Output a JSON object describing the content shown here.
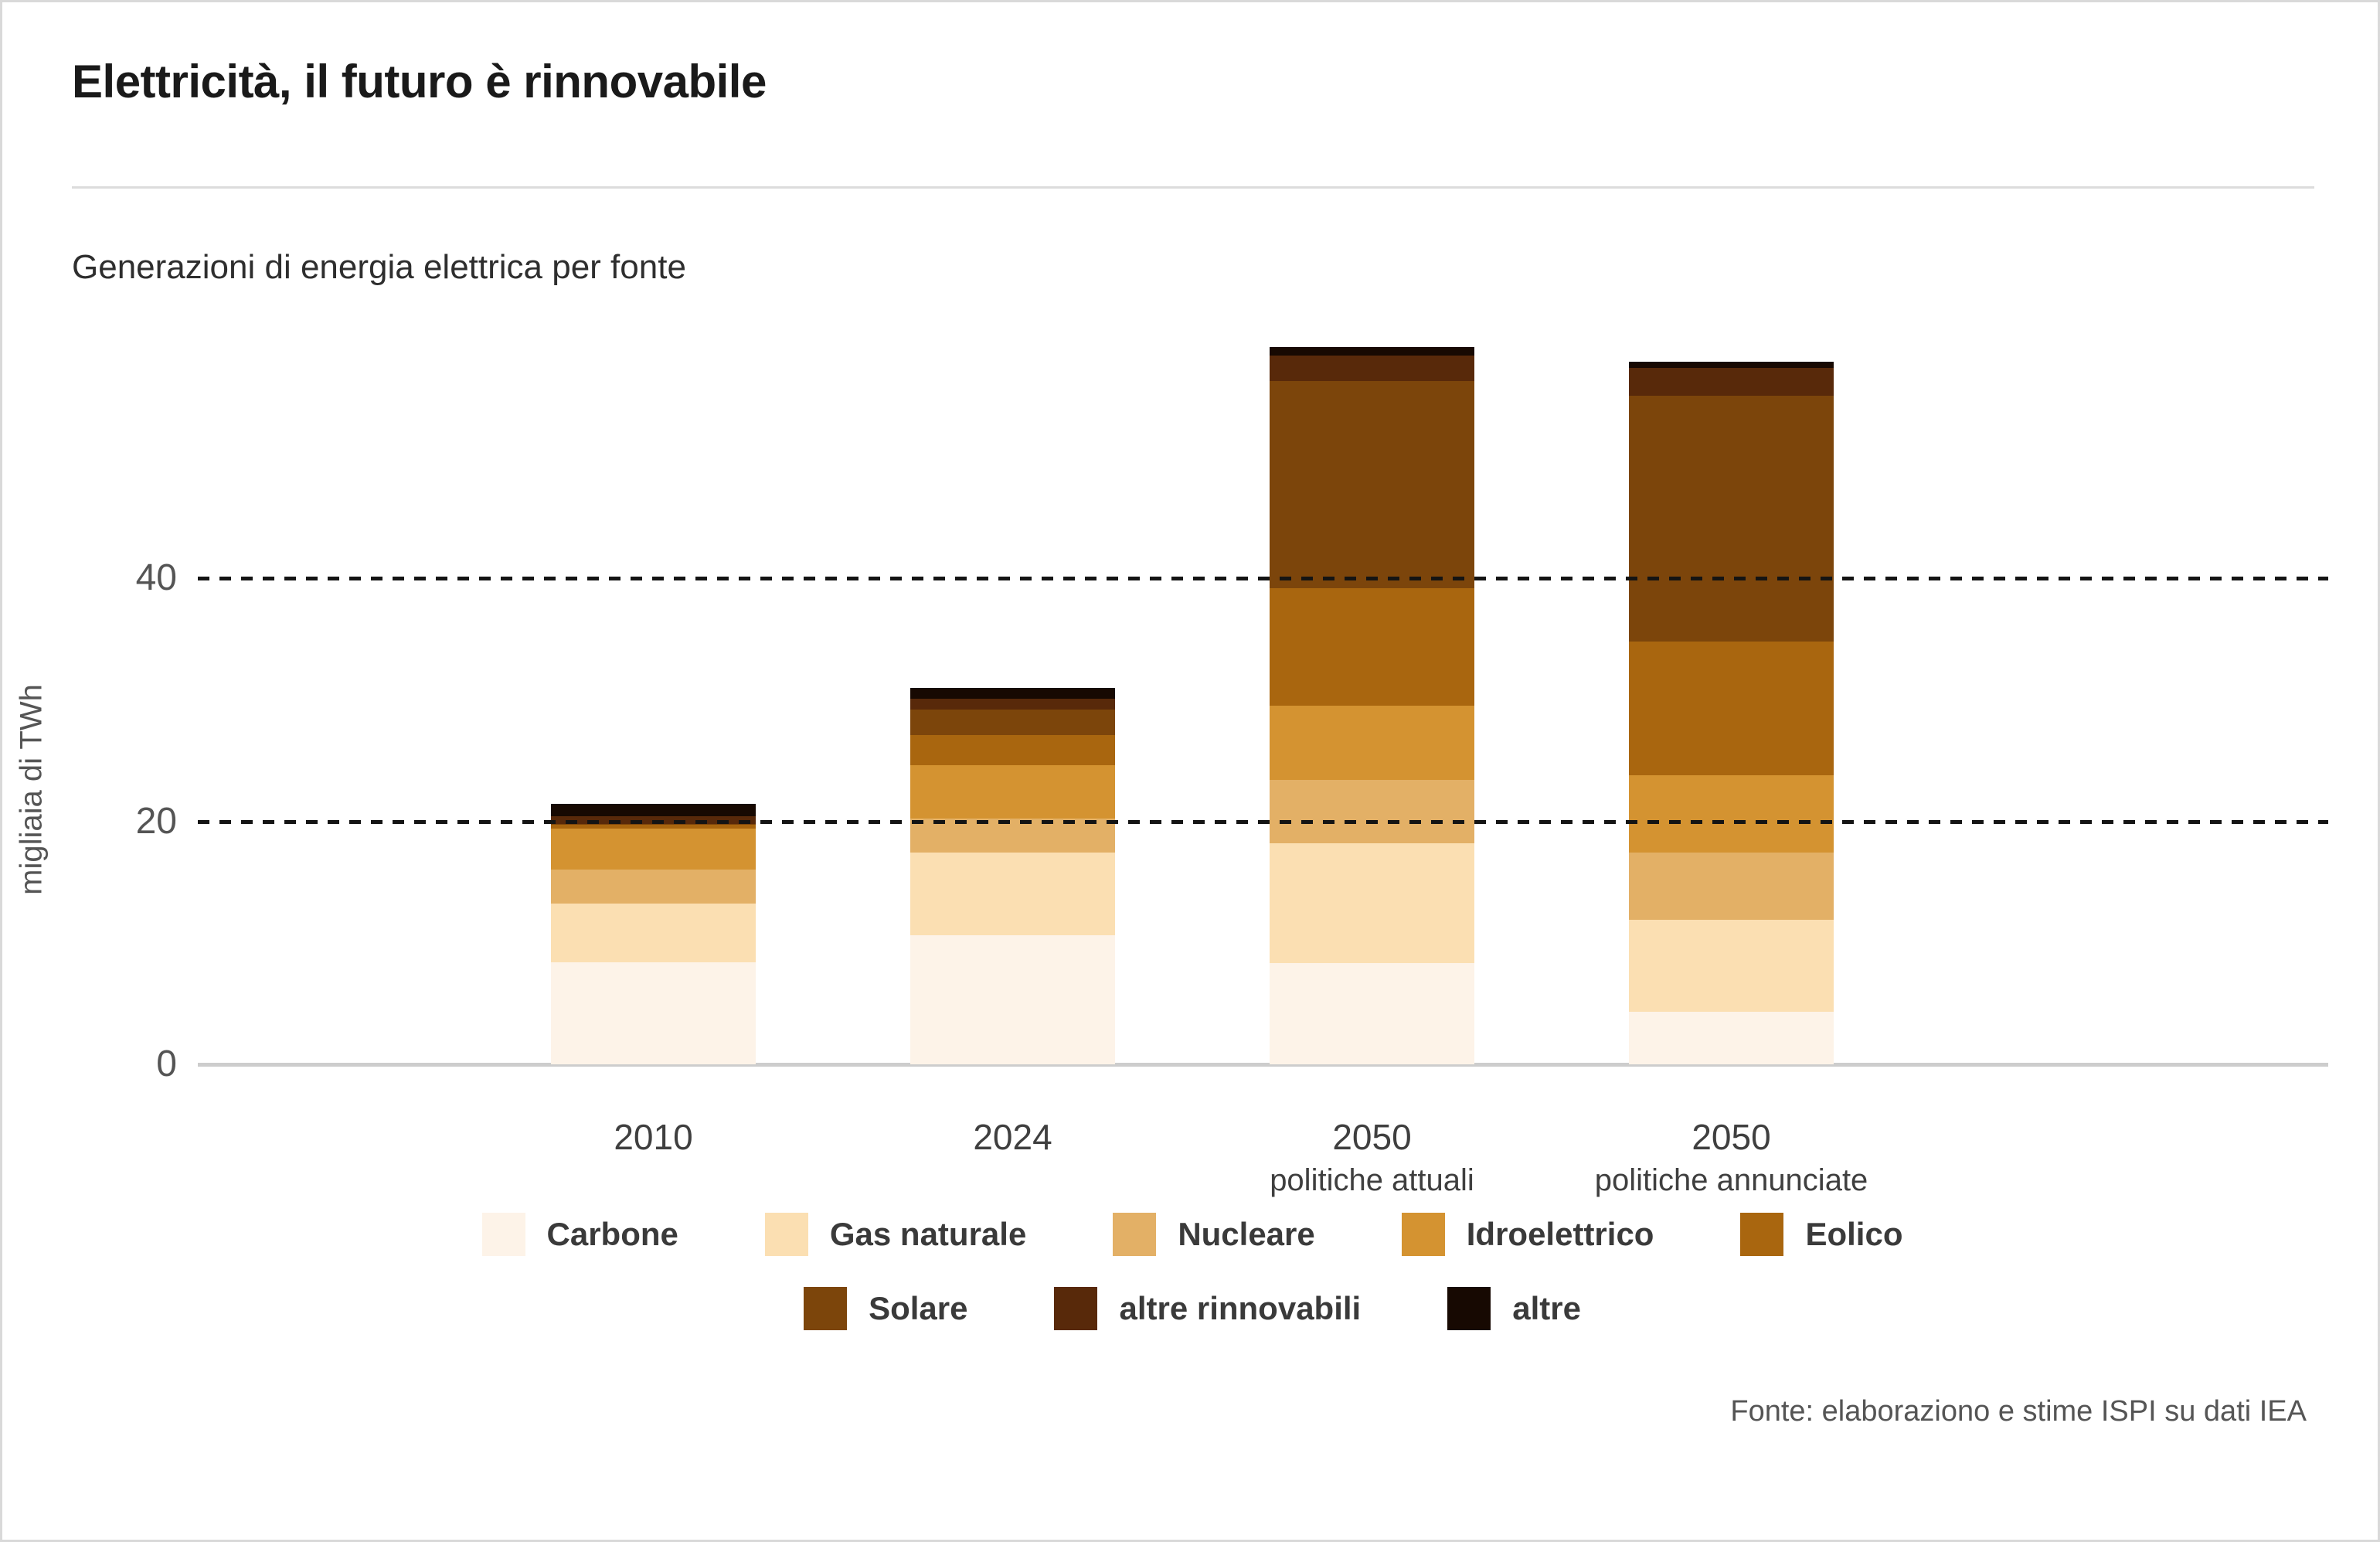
{
  "header": {
    "title": "Elettricità, il futuro è rinnovabile",
    "subtitle": "Generazioni di energia elettrica per fonte"
  },
  "footer": {
    "source": "Fonte: elaboraziono e stime ISPI su dati IEA"
  },
  "chart_data": {
    "type": "bar",
    "stacked": true,
    "title": "Generazioni di energia elettrica per fonte",
    "ylabel": "migliaia di TWh",
    "xlabel": "",
    "ylim": [
      0,
      60
    ],
    "yticks": [
      0,
      20,
      40
    ],
    "grid": "dashed horizontal lines at 20 and 40, drawn over bars",
    "legend_position": "bottom, two centered rows (5 items / 3 items)",
    "categories": [
      {
        "label": "2010",
        "sublabel": ""
      },
      {
        "label": "2024",
        "sublabel": ""
      },
      {
        "label": "2050",
        "sublabel": "politiche attuali"
      },
      {
        "label": "2050",
        "sublabel": "politiche annunciate"
      }
    ],
    "series": [
      {
        "name": "Carbone",
        "color": "#fdf3e8",
        "values": [
          8.4,
          10.6,
          8.3,
          4.3
        ]
      },
      {
        "name": "Gas naturale",
        "color": "#fbdfb2",
        "values": [
          4.8,
          6.8,
          9.9,
          7.6
        ]
      },
      {
        "name": "Nucleare",
        "color": "#e3b066",
        "values": [
          2.8,
          2.8,
          5.2,
          5.5
        ]
      },
      {
        "name": "Idroelettrico",
        "color": "#d49331",
        "values": [
          3.4,
          4.4,
          6.1,
          6.4
        ]
      },
      {
        "name": "Eolico",
        "color": "#a9660f",
        "values": [
          0.3,
          2.5,
          9.7,
          11.0
        ]
      },
      {
        "name": "Solare",
        "color": "#7c450b",
        "values": [
          0.1,
          2.1,
          17.0,
          20.2
        ]
      },
      {
        "name": "altre rinnovabili",
        "color": "#58290a",
        "values": [
          0.6,
          0.9,
          2.1,
          2.3
        ]
      },
      {
        "name": "altre",
        "color": "#170902",
        "values": [
          1.0,
          0.9,
          0.7,
          0.5
        ]
      }
    ],
    "totals": [
      21.4,
      31.0,
      59.0,
      57.8
    ]
  }
}
